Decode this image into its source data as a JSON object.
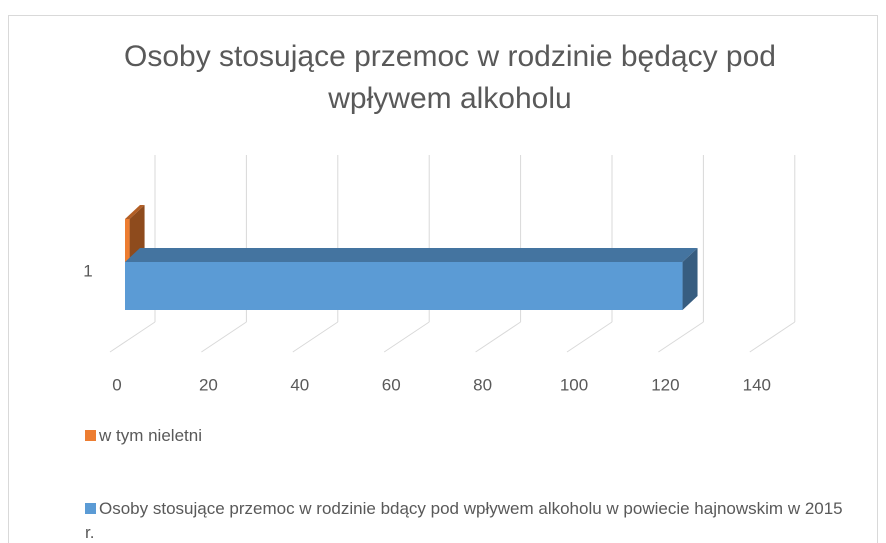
{
  "chart_data": {
    "type": "bar3d_horizontal",
    "title": "Osoby stosujące przemoc w rodzinie będący pod wpływem alkoholu",
    "categories": [
      "1"
    ],
    "series": [
      {
        "name": "w tym nieletni",
        "color": "#ed7d31",
        "values": [
          1
        ]
      },
      {
        "name": "Osoby stosujące przemoc w rodzinie bdący pod wpływem alkoholu w powiecie hajnowskim w 2015 r.",
        "color": "#5b9bd5",
        "values": [
          122
        ]
      }
    ],
    "xlim": [
      0,
      140
    ],
    "xticks": [
      0,
      20,
      40,
      60,
      80,
      100,
      120,
      140
    ],
    "grid": true,
    "legend": "bottom"
  }
}
